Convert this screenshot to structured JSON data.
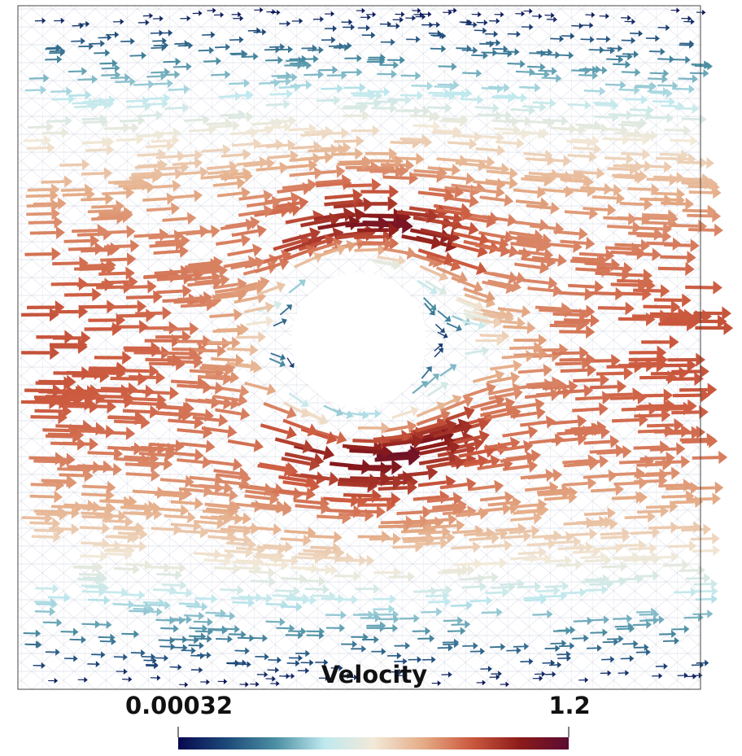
{
  "legend": {
    "title": "Velocity",
    "min_label": "0.00032",
    "max_label": "1.2",
    "min_value": 0.00032,
    "max_value": 1.2,
    "colormap": [
      "#08084f",
      "#1d4a7a",
      "#4c8fa3",
      "#bfe9ef",
      "#f2e9d8",
      "#e5ad88",
      "#cc5a3f",
      "#8c1b1a",
      "#5a0c32"
    ]
  },
  "colors": {
    "mesh_line": "#b8bccf",
    "frame": "#444444",
    "background": "#ffffff"
  }
}
